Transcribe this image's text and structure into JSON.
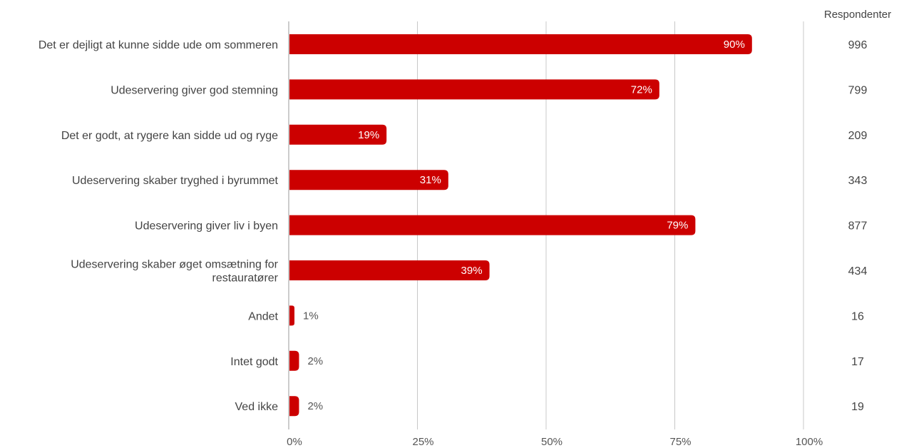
{
  "chart_data": {
    "type": "bar",
    "orientation": "horizontal",
    "categories": [
      "Det er dejligt at kunne sidde ude om sommeren",
      "Udeservering giver god stemning",
      "Det er godt, at rygere kan sidde ud og ryge",
      "Udeservering skaber tryghed i byrummet",
      "Udeservering giver liv i byen",
      "Udeservering skaber øget omsætning for restauratører",
      "Andet",
      "Intet godt",
      "Ved ikke"
    ],
    "category_lines": [
      [
        "Det er dejligt at kunne sidde ude om sommeren"
      ],
      [
        "Udeservering giver god stemning"
      ],
      [
        "Det er godt, at rygere kan sidde ud og ryge"
      ],
      [
        "Udeservering skaber tryghed i byrummet"
      ],
      [
        "Udeservering giver liv i byen"
      ],
      [
        "Udeservering skaber øget omsætning for",
        "restauratører"
      ],
      [
        "Andet"
      ],
      [
        "Intet godt"
      ],
      [
        "Ved ikke"
      ]
    ],
    "values": [
      90,
      72,
      19,
      31,
      79,
      39,
      1,
      2,
      2
    ],
    "value_labels": [
      "90%",
      "72%",
      "19%",
      "31%",
      "79%",
      "39%",
      "1%",
      "2%",
      "2%"
    ],
    "xlim": [
      0,
      100
    ],
    "x_ticks": [
      0,
      25,
      50,
      75,
      100
    ],
    "x_tick_labels": [
      "0%",
      "25%",
      "50%",
      "75%",
      "100%"
    ],
    "grid": true,
    "bar_color": "#cc0000",
    "respondents_header": "Respondenter",
    "respondents": [
      "996",
      "799",
      "209",
      "343",
      "877",
      "434",
      "16",
      "17",
      "19"
    ]
  }
}
